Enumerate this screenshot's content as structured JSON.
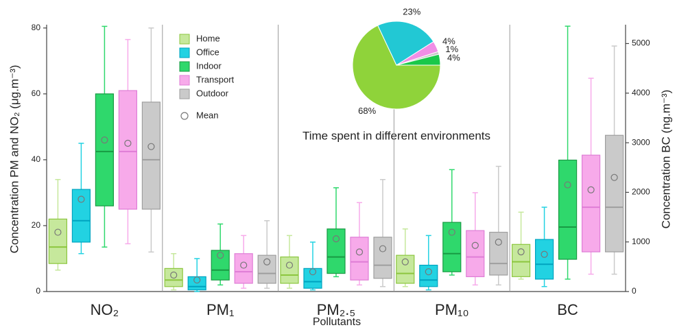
{
  "chart_data": [
    {
      "type": "box",
      "x_label": "Pollutants",
      "y_label": "Concentration PM and NO₂ (μg.m⁻³)",
      "y2_label": "Concentration BC (ng.m⁻³)",
      "categories": [
        "NO₂",
        "PM₁",
        "PM₂.₅",
        "PM₁₀",
        "BC"
      ],
      "category_axes": [
        "y",
        "y",
        "y",
        "y",
        "y2"
      ],
      "ylim": [
        0,
        81
      ],
      "yticks": [
        0,
        20,
        40,
        60,
        80
      ],
      "y2lim": [
        0,
        5380
      ],
      "y2ticks": [
        0,
        1000,
        2000,
        3000,
        4000,
        5000
      ],
      "mean_label": "Mean",
      "series": [
        {
          "name": "Home",
          "color": "#c6e89c",
          "line_color": "#8cc63f",
          "min": [
            6.5,
            0.5,
            1,
            1.5,
            250
          ],
          "q1": [
            8.5,
            1.5,
            2.5,
            2.5,
            300
          ],
          "median": [
            13.5,
            3.5,
            5,
            5.5,
            600
          ],
          "q3": [
            22,
            7,
            10.5,
            11,
            950
          ],
          "max": [
            34,
            11.5,
            17,
            19,
            1600
          ],
          "mean": [
            18,
            5,
            8,
            9,
            800
          ]
        },
        {
          "name": "Office",
          "color": "#22d2e2",
          "line_color": "#00a3bf",
          "min": [
            11.5,
            0,
            0.5,
            0.5,
            100
          ],
          "q1": [
            15,
            0.5,
            1,
            1.5,
            250
          ],
          "median": [
            21.5,
            1.5,
            3,
            3.5,
            550
          ],
          "q3": [
            31,
            4.5,
            7,
            8,
            1050
          ],
          "max": [
            45,
            10,
            15,
            17,
            1700
          ],
          "mean": [
            28,
            3.5,
            6,
            6,
            750
          ]
        },
        {
          "name": "Indoor",
          "color": "#2fd86c",
          "line_color": "#189a43",
          "min": [
            13.5,
            2,
            4.5,
            5,
            250
          ],
          "q1": [
            26,
            3.5,
            5.5,
            6,
            650
          ],
          "median": [
            42.5,
            6.5,
            10.5,
            11.5,
            1300
          ],
          "q3": [
            60,
            12.5,
            19,
            21,
            2650
          ],
          "max": [
            80.5,
            20.5,
            31.5,
            37,
            5350
          ],
          "mean": [
            46,
            11,
            16,
            18,
            2150
          ]
        },
        {
          "name": "Transport",
          "color": "#f7aaea",
          "line_color": "#df7dd6",
          "min": [
            14.5,
            1,
            2,
            2,
            350
          ],
          "q1": [
            25,
            2.5,
            3.5,
            4.5,
            800
          ],
          "median": [
            42.5,
            6,
            9,
            10.5,
            1700
          ],
          "q3": [
            61,
            11.5,
            16.5,
            18.5,
            2750
          ],
          "max": [
            76.5,
            17,
            27,
            30,
            4300
          ],
          "mean": [
            45,
            8,
            12,
            14,
            2050
          ]
        },
        {
          "name": "Outdoor",
          "color": "#cacaca",
          "line_color": "#9e9e9e",
          "min": [
            12,
            1,
            1.5,
            2,
            350
          ],
          "q1": [
            25,
            2.5,
            4,
            5,
            800
          ],
          "median": [
            40,
            5.5,
            8,
            8.5,
            1700
          ],
          "q3": [
            57.5,
            11,
            16.5,
            18,
            3150
          ],
          "max": [
            80,
            21.5,
            34,
            38,
            4950
          ],
          "mean": [
            44,
            9,
            13,
            15,
            2300
          ]
        }
      ]
    },
    {
      "type": "pie",
      "title": "Time spent in different environments",
      "values": [
        68,
        23,
        4,
        1,
        4
      ],
      "value_labels": [
        "68%",
        "23%",
        "4%",
        "1%",
        "4%"
      ],
      "colors": [
        "#8fd33a",
        "#22c8d4",
        "#f08ee6",
        "#c8c8c8",
        "#19c84a"
      ]
    }
  ]
}
